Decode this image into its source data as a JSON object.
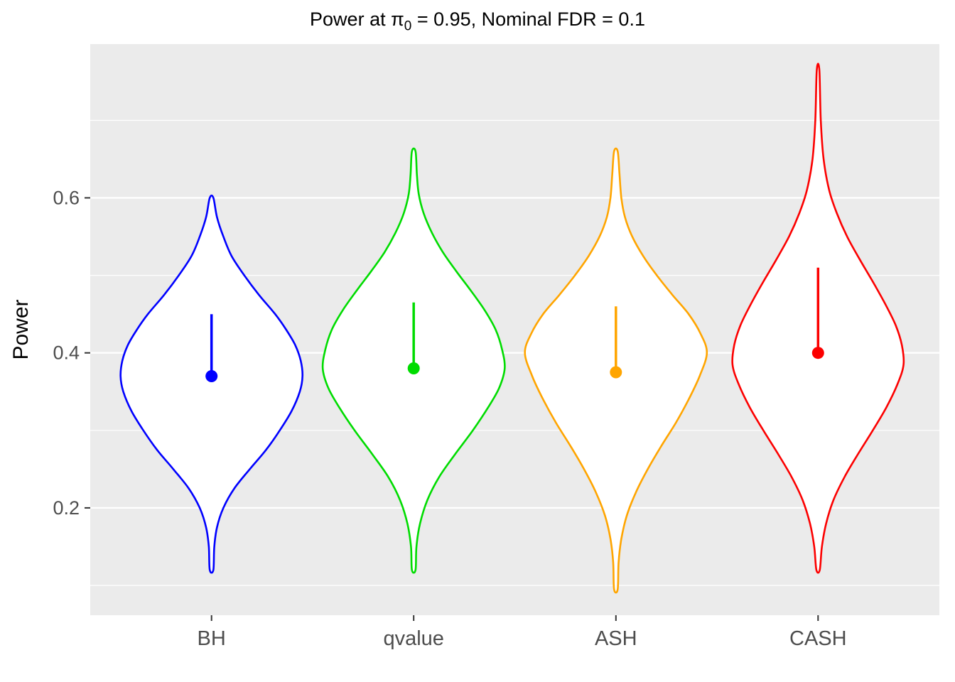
{
  "title": {
    "prefix": "Power at ",
    "pi_symbol": "π",
    "pi_subscript": "0",
    "suffix": " = 0.95, Nominal FDR = 0.1"
  },
  "y_axis": {
    "label": "Power"
  },
  "chart_data": {
    "type": "violin",
    "title": "Power at π₀ = 0.95, Nominal FDR = 0.1",
    "xlabel": "",
    "ylabel": "Power",
    "ylim": [
      0.0615,
      0.7985
    ],
    "grid": "on",
    "legend": "none",
    "y_ticks": [
      {
        "label": "0.6",
        "value": 0.6
      },
      {
        "label": "0.4",
        "value": 0.4
      },
      {
        "label": "0.2",
        "value": 0.2
      }
    ],
    "y_major_gridlines": [
      0.2,
      0.4,
      0.6
    ],
    "y_minor_gridlines": [
      0.1,
      0.3,
      0.5,
      0.7
    ],
    "categories": [
      "BH",
      "qvalue",
      "ASH",
      "CASH"
    ],
    "colors": {
      "panel_bg": "#EBEBEB",
      "grid": "#FFFFFF",
      "tick_mark": "#333333",
      "tick_text": "#4D4D4D"
    },
    "series": [
      {
        "name": "BH",
        "color": "#0000FF",
        "point": 0.37,
        "segment": [
          0.37,
          0.45
        ],
        "range": [
          0.12,
          0.6
        ],
        "max_halfwidth": 1.0,
        "profile": [
          [
            0.12,
            0.02
          ],
          [
            0.15,
            0.03
          ],
          [
            0.175,
            0.06
          ],
          [
            0.2,
            0.13
          ],
          [
            0.225,
            0.25
          ],
          [
            0.25,
            0.42
          ],
          [
            0.275,
            0.6
          ],
          [
            0.3,
            0.75
          ],
          [
            0.325,
            0.88
          ],
          [
            0.35,
            0.97
          ],
          [
            0.37,
            1.0
          ],
          [
            0.39,
            0.98
          ],
          [
            0.41,
            0.92
          ],
          [
            0.43,
            0.82
          ],
          [
            0.45,
            0.7
          ],
          [
            0.475,
            0.52
          ],
          [
            0.5,
            0.36
          ],
          [
            0.525,
            0.22
          ],
          [
            0.55,
            0.13
          ],
          [
            0.575,
            0.06
          ],
          [
            0.6,
            0.02
          ]
        ]
      },
      {
        "name": "qvalue",
        "color": "#00DC00",
        "point": 0.38,
        "segment": [
          0.38,
          0.465
        ],
        "range": [
          0.12,
          0.66
        ],
        "max_halfwidth": 1.0,
        "profile": [
          [
            0.12,
            0.02
          ],
          [
            0.15,
            0.03
          ],
          [
            0.18,
            0.07
          ],
          [
            0.21,
            0.15
          ],
          [
            0.24,
            0.28
          ],
          [
            0.27,
            0.46
          ],
          [
            0.3,
            0.65
          ],
          [
            0.33,
            0.82
          ],
          [
            0.355,
            0.94
          ],
          [
            0.38,
            1.0
          ],
          [
            0.405,
            0.97
          ],
          [
            0.43,
            0.9
          ],
          [
            0.455,
            0.78
          ],
          [
            0.48,
            0.63
          ],
          [
            0.505,
            0.47
          ],
          [
            0.53,
            0.32
          ],
          [
            0.555,
            0.2
          ],
          [
            0.58,
            0.11
          ],
          [
            0.605,
            0.055
          ],
          [
            0.63,
            0.035
          ],
          [
            0.66,
            0.02
          ]
        ]
      },
      {
        "name": "ASH",
        "color": "#FFA500",
        "point": 0.375,
        "segment": [
          0.375,
          0.46
        ],
        "range": [
          0.095,
          0.66
        ],
        "max_halfwidth": 1.0,
        "profile": [
          [
            0.095,
            0.02
          ],
          [
            0.13,
            0.03
          ],
          [
            0.16,
            0.06
          ],
          [
            0.19,
            0.12
          ],
          [
            0.22,
            0.22
          ],
          [
            0.25,
            0.35
          ],
          [
            0.28,
            0.5
          ],
          [
            0.31,
            0.66
          ],
          [
            0.34,
            0.8
          ],
          [
            0.37,
            0.92
          ],
          [
            0.4,
            1.0
          ],
          [
            0.425,
            0.93
          ],
          [
            0.45,
            0.8
          ],
          [
            0.475,
            0.62
          ],
          [
            0.5,
            0.45
          ],
          [
            0.525,
            0.3
          ],
          [
            0.55,
            0.18
          ],
          [
            0.575,
            0.1
          ],
          [
            0.6,
            0.06
          ],
          [
            0.63,
            0.04
          ],
          [
            0.66,
            0.02
          ]
        ]
      },
      {
        "name": "CASH",
        "color": "#FC0000",
        "point": 0.4,
        "segment": [
          0.4,
          0.51
        ],
        "range": [
          0.12,
          0.765
        ],
        "max_halfwidth": 0.94,
        "profile": [
          [
            0.12,
            0.02
          ],
          [
            0.15,
            0.045
          ],
          [
            0.18,
            0.095
          ],
          [
            0.21,
            0.18
          ],
          [
            0.24,
            0.31
          ],
          [
            0.27,
            0.47
          ],
          [
            0.3,
            0.64
          ],
          [
            0.33,
            0.8
          ],
          [
            0.36,
            0.93
          ],
          [
            0.385,
            1.0
          ],
          [
            0.41,
            0.98
          ],
          [
            0.435,
            0.91
          ],
          [
            0.46,
            0.8
          ],
          [
            0.49,
            0.65
          ],
          [
            0.52,
            0.49
          ],
          [
            0.55,
            0.34
          ],
          [
            0.58,
            0.22
          ],
          [
            0.61,
            0.13
          ],
          [
            0.65,
            0.065
          ],
          [
            0.7,
            0.032
          ],
          [
            0.765,
            0.015
          ]
        ]
      }
    ]
  }
}
